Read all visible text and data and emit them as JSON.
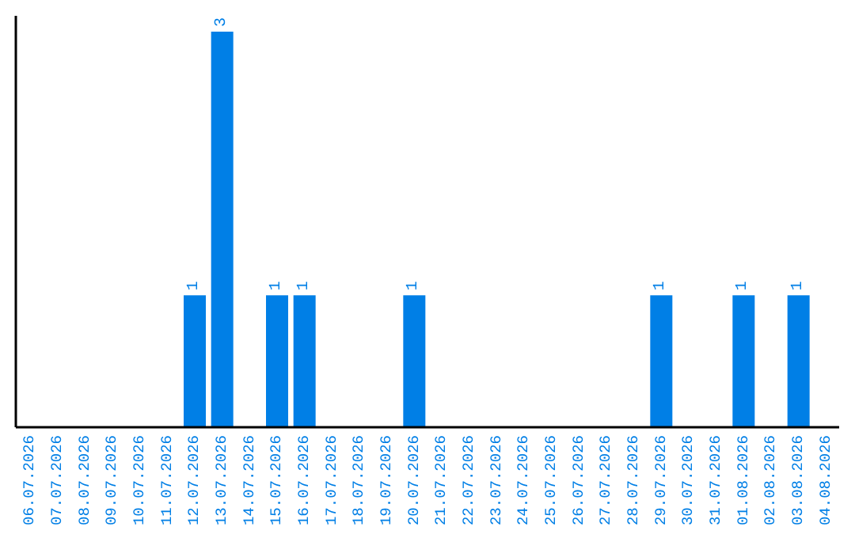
{
  "chart_data": {
    "type": "bar",
    "categories": [
      "06.07.2026",
      "07.07.2026",
      "08.07.2026",
      "09.07.2026",
      "10.07.2026",
      "11.07.2026",
      "12.07.2026",
      "13.07.2026",
      "14.07.2026",
      "15.07.2026",
      "16.07.2026",
      "17.07.2026",
      "18.07.2026",
      "19.07.2026",
      "20.07.2026",
      "21.07.2026",
      "22.07.2026",
      "23.07.2026",
      "24.07.2026",
      "25.07.2026",
      "26.07.2026",
      "27.07.2026",
      "28.07.2026",
      "29.07.2026",
      "30.07.2026",
      "31.07.2026",
      "01.08.2026",
      "02.08.2026",
      "03.08.2026",
      "04.08.2026"
    ],
    "values": [
      0,
      0,
      0,
      0,
      0,
      0,
      1,
      3,
      0,
      1,
      1,
      0,
      0,
      0,
      1,
      0,
      0,
      0,
      0,
      0,
      0,
      0,
      0,
      1,
      0,
      0,
      1,
      0,
      1,
      0
    ],
    "value_labels": [
      null,
      null,
      null,
      null,
      null,
      null,
      "1",
      "3",
      null,
      "1",
      "1",
      null,
      null,
      null,
      "1",
      null,
      null,
      null,
      null,
      null,
      null,
      null,
      null,
      "1",
      null,
      null,
      "1",
      null,
      "1",
      null
    ],
    "color": "#007fe6",
    "grid": false,
    "legend": false
  }
}
